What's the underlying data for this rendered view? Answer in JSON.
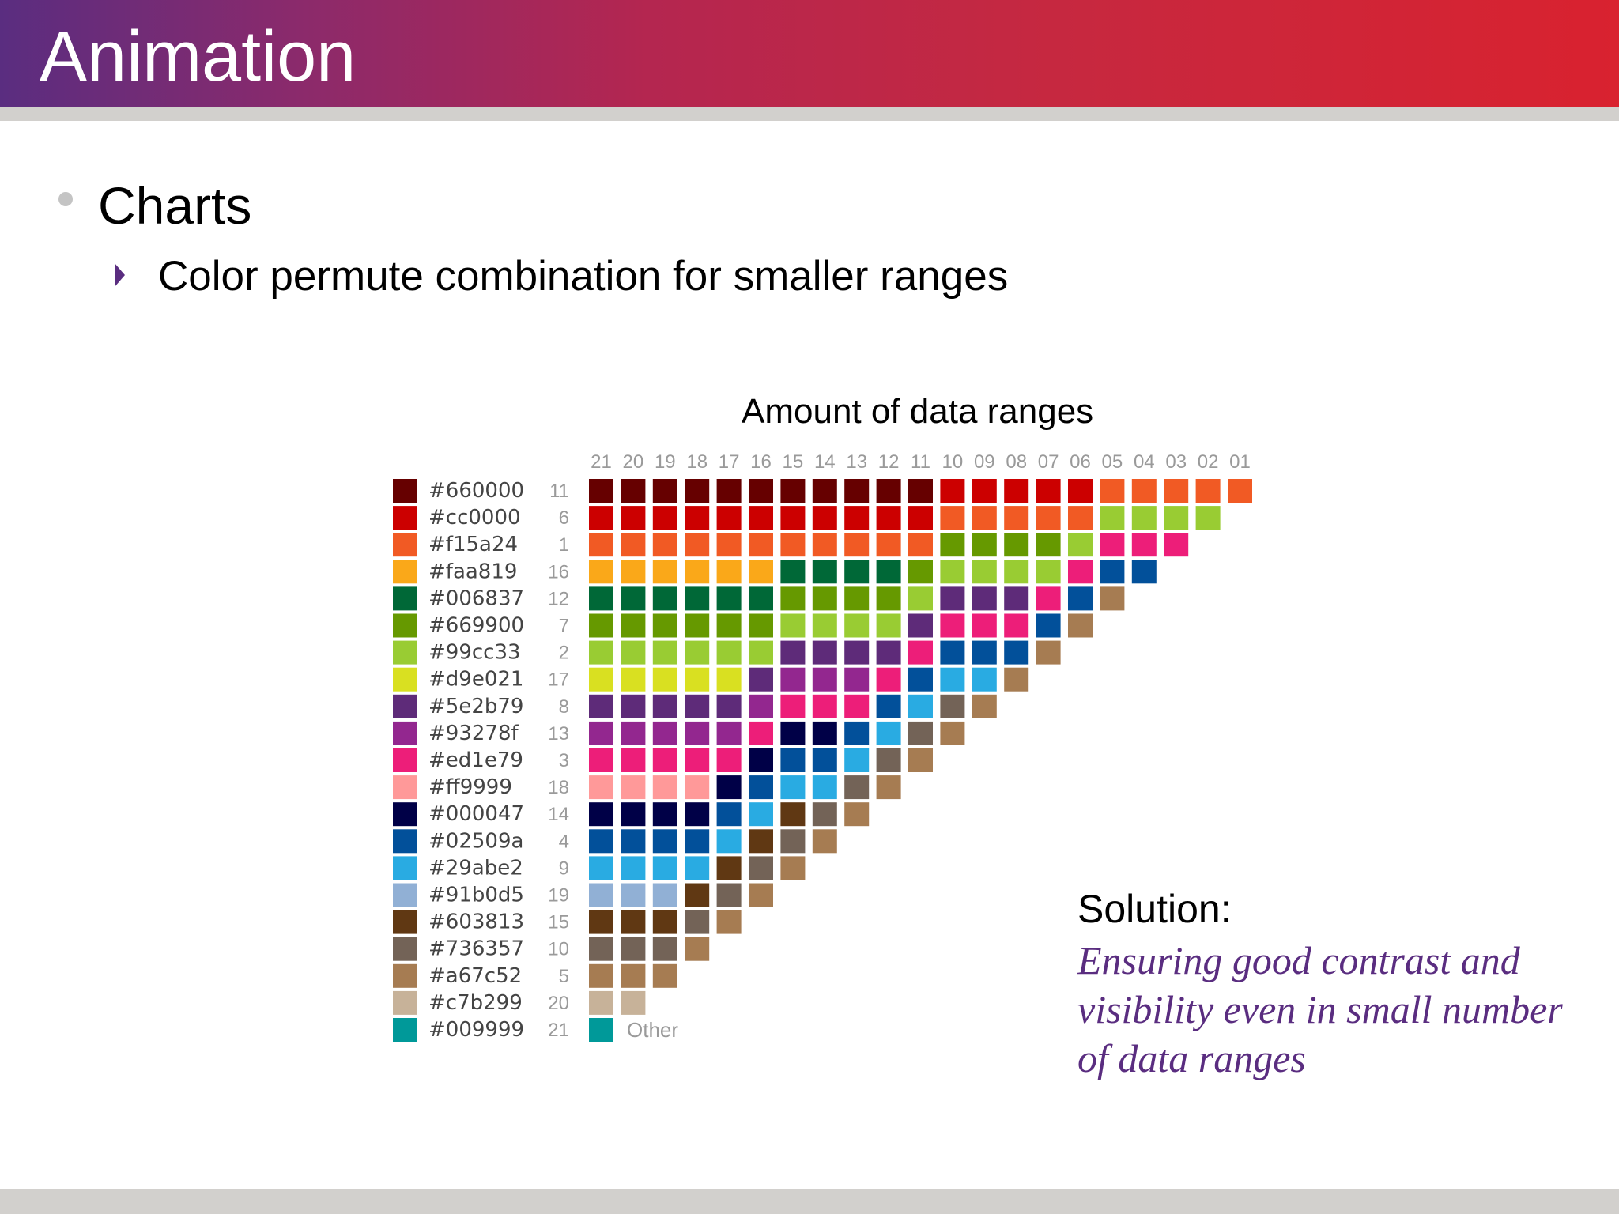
{
  "slide": {
    "title": "Animation",
    "bullet_1": "Charts",
    "bullet_2": "Color permute combination for smaller ranges",
    "solution_heading": "Solution:",
    "solution_text": "Ensuring good contrast and visibility even in small number of data ranges"
  },
  "colors": {
    "title_gradient": [
      "#5a2d80",
      "#b42650",
      "#d9222f"
    ],
    "rule": "#d2d0cd",
    "accent_purple": "#5a2d80"
  },
  "chart_data": {
    "type": "table",
    "title": "Amount of data ranges",
    "column_labels": [
      "21",
      "20",
      "19",
      "18",
      "17",
      "16",
      "15",
      "14",
      "13",
      "12",
      "11",
      "10",
      "09",
      "08",
      "07",
      "06",
      "05",
      "04",
      "03",
      "02",
      "01"
    ],
    "palette": [
      {
        "hex": "#660000",
        "order": 11
      },
      {
        "hex": "#cc0000",
        "order": 6
      },
      {
        "hex": "#f15a24",
        "order": 1
      },
      {
        "hex": "#faa819",
        "order": 16
      },
      {
        "hex": "#006837",
        "order": 12
      },
      {
        "hex": "#669900",
        "order": 7
      },
      {
        "hex": "#99cc33",
        "order": 2
      },
      {
        "hex": "#d9e021",
        "order": 17
      },
      {
        "hex": "#5e2b79",
        "order": 8
      },
      {
        "hex": "#93278f",
        "order": 13
      },
      {
        "hex": "#ed1e79",
        "order": 3
      },
      {
        "hex": "#ff9999",
        "order": 18
      },
      {
        "hex": "#000047",
        "order": 14
      },
      {
        "hex": "#02509a",
        "order": 4
      },
      {
        "hex": "#29abe2",
        "order": 9
      },
      {
        "hex": "#91b0d5",
        "order": 19
      },
      {
        "hex": "#603813",
        "order": 15
      },
      {
        "hex": "#736357",
        "order": 10
      },
      {
        "hex": "#a67c52",
        "order": 5
      },
      {
        "hex": "#c7b299",
        "order": 20
      },
      {
        "hex": "#009999",
        "order": 21
      }
    ],
    "other_label": "Other",
    "order_rotation": [
      1,
      2,
      3,
      4,
      5,
      6,
      7,
      8,
      9,
      10,
      11,
      12,
      13,
      14,
      15,
      16,
      17,
      18,
      19,
      20
    ]
  }
}
